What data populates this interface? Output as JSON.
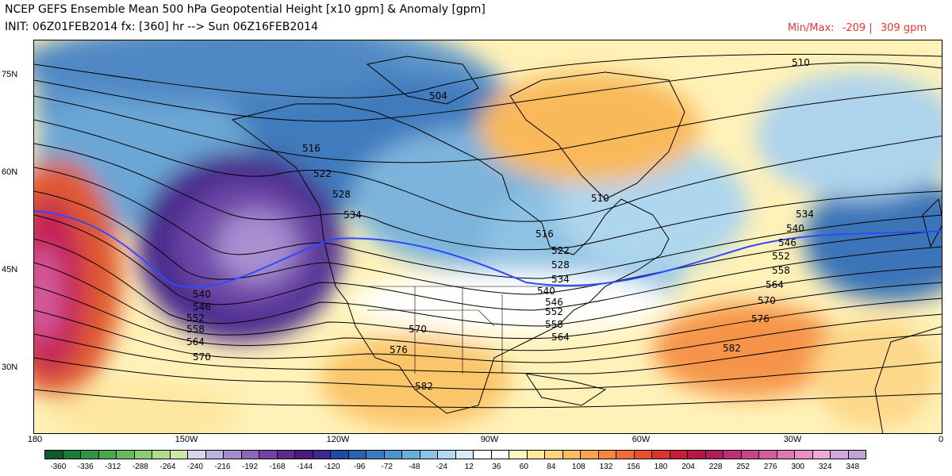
{
  "header": {
    "title_line1": "NCEP GEFS Ensemble Mean 500 hPa Geopotential Height [x10 gpm] & Anomaly [gpm]",
    "title_line2": "INIT: 06Z01FEB2014 fx: [360] hr --> Sun 06Z16FEB2014",
    "minmax_label": "Min/Max:",
    "min_value": "-209 |",
    "max_value": "309 gpm"
  },
  "axes": {
    "lat_labels": [
      "75N",
      "60N",
      "45N",
      "30N"
    ],
    "lon_labels": [
      "180",
      "150W",
      "120W",
      "90W",
      "60W",
      "30W",
      "0"
    ]
  },
  "contour_labels": [
    {
      "text": "504"
    },
    {
      "text": "510"
    },
    {
      "text": "510"
    },
    {
      "text": "516"
    },
    {
      "text": "516"
    },
    {
      "text": "522"
    },
    {
      "text": "522"
    },
    {
      "text": "528"
    },
    {
      "text": "528"
    },
    {
      "text": "534"
    },
    {
      "text": "534"
    },
    {
      "text": "534"
    },
    {
      "text": "540"
    },
    {
      "text": "540"
    },
    {
      "text": "540"
    },
    {
      "text": "546"
    },
    {
      "text": "546"
    },
    {
      "text": "546"
    },
    {
      "text": "552"
    },
    {
      "text": "552"
    },
    {
      "text": "552"
    },
    {
      "text": "558"
    },
    {
      "text": "558"
    },
    {
      "text": "558"
    },
    {
      "text": "564"
    },
    {
      "text": "564"
    },
    {
      "text": "564"
    },
    {
      "text": "570"
    },
    {
      "text": "570"
    },
    {
      "text": "570"
    },
    {
      "text": "576"
    },
    {
      "text": "576"
    },
    {
      "text": "582"
    },
    {
      "text": "582"
    }
  ],
  "colorbar": {
    "labels": [
      "-360",
      "-336",
      "-312",
      "-288",
      "-264",
      "-240",
      "-216",
      "-192",
      "-168",
      "-144",
      "-120",
      "-96",
      "-72",
      "-48",
      "-24",
      "12",
      "36",
      "60",
      "84",
      "108",
      "132",
      "156",
      "180",
      "204",
      "228",
      "252",
      "276",
      "300",
      "324",
      "348"
    ],
    "colors": [
      "#0b5a2e",
      "#1e7a3c",
      "#329344",
      "#47a84f",
      "#66bb5e",
      "#8ccc72",
      "#aedd8c",
      "#cde8a4",
      "#d8d4ec",
      "#bdb3dc",
      "#a58ccb",
      "#8c67b9",
      "#7442a4",
      "#5e2a8e",
      "#4a1c82",
      "#3a2a8e",
      "#24489e",
      "#2a62ae",
      "#3a7abe",
      "#4e94cc",
      "#6aaed8",
      "#8cc4e4",
      "#b2d8ee",
      "#d6ebf6",
      "#ffffff",
      "#ffffff",
      "#fff6c0",
      "#fee89a",
      "#fdd57a",
      "#fcbe60",
      "#fba34c",
      "#f8863e",
      "#f26c36",
      "#ea4f30",
      "#db3232",
      "#c81d38",
      "#b81444",
      "#b01c5a",
      "#bd2e74",
      "#ca428a",
      "#d65ca0",
      "#e076b4",
      "#e890c6",
      "#eeaad2",
      "#d4a8dc",
      "#c2a2da"
    ]
  },
  "legend_colors": {
    "contour_line": "#000000",
    "highlight_540": "#2e4bff",
    "coast": "#000000"
  }
}
